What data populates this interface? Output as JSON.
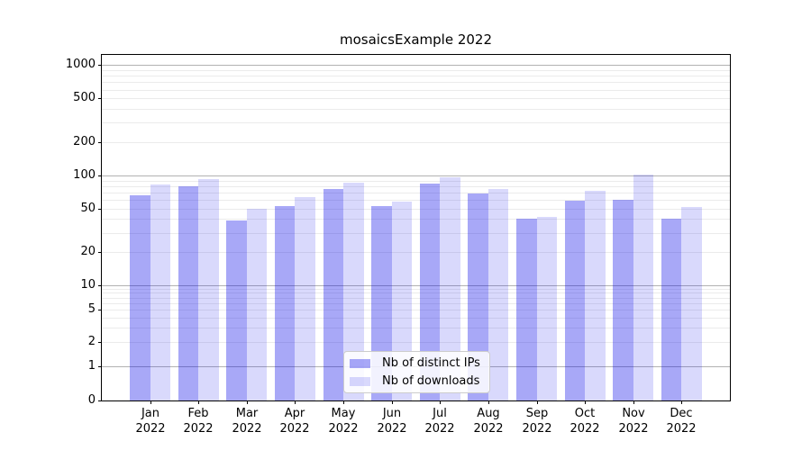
{
  "colors": {
    "background": "#ffffff",
    "bar_base": "#0000e8",
    "ips_alpha": 0.34,
    "downloads_alpha": 0.15,
    "major_grid": "#b2b2b2",
    "minor_grid": "#ebebeb",
    "axis": "#000000",
    "text": "#000000",
    "legend_border": "#cccccc"
  },
  "chart_data": {
    "type": "bar",
    "title": "mosaicsExample 2022",
    "categories": [
      "Jan",
      "Feb",
      "Mar",
      "Apr",
      "May",
      "Jun",
      "Jul",
      "Aug",
      "Sep",
      "Oct",
      "Nov",
      "Dec"
    ],
    "category_year": "2022",
    "series": [
      {
        "name": "Nb of distinct IPs",
        "key": "ips",
        "values": [
          66,
          80,
          39,
          53,
          75,
          53,
          84,
          69,
          40,
          59,
          60,
          40
        ]
      },
      {
        "name": "Nb of downloads",
        "key": "downloads",
        "values": [
          82,
          93,
          50,
          64,
          86,
          58,
          97,
          76,
          42,
          73,
          102,
          52
        ]
      }
    ],
    "yscale": "symlog",
    "ylim": [
      0,
      1240
    ],
    "ytick_values": [
      0,
      1,
      2,
      5,
      10,
      20,
      50,
      100,
      200,
      500,
      1000
    ],
    "ytick_labels": [
      "0",
      "1",
      "2",
      "5",
      "10",
      "20",
      "50",
      "100",
      "200",
      "500",
      "1000"
    ],
    "major_grid_values": [
      1,
      10,
      100,
      1000
    ],
    "grid": "major+minor",
    "legend_position": "lower center"
  }
}
